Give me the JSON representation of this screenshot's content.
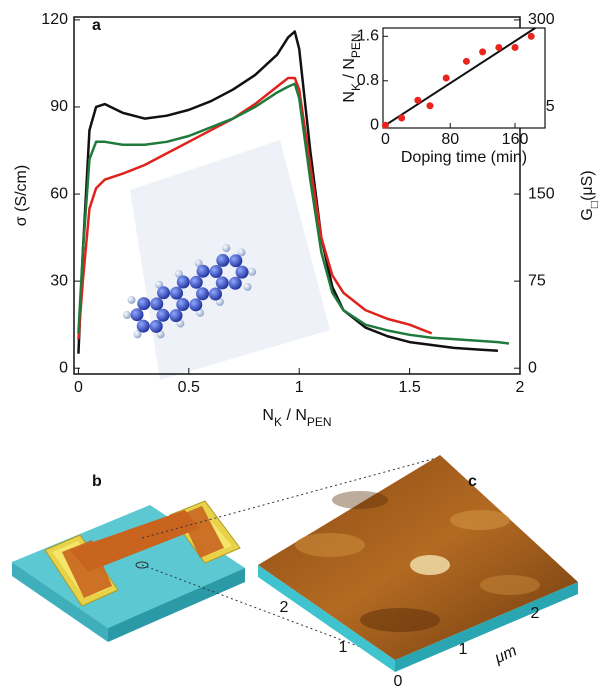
{
  "chart_data": [
    {
      "type": "line",
      "panel_label": "a",
      "x_label": [
        "N",
        "K",
        " / N",
        "PEN"
      ],
      "y_label": "σ (S/cm)",
      "y2_label": [
        "G",
        "□",
        "(μS)"
      ],
      "x": [
        0,
        0.02,
        0.05,
        0.08,
        0.12,
        0.2,
        0.3,
        0.4,
        0.5,
        0.6,
        0.7,
        0.8,
        0.9,
        0.95,
        0.98,
        1.0,
        1.05,
        1.1,
        1.15,
        1.2,
        1.3,
        1.4,
        1.5,
        1.6,
        1.7,
        1.8,
        1.9,
        1.95
      ],
      "series": [
        {
          "color": "#111111",
          "values": [
            5,
            40,
            82,
            90,
            91,
            88,
            86,
            87,
            89,
            92,
            96,
            101,
            108,
            114,
            116,
            110,
            75,
            45,
            28,
            20,
            14,
            11,
            9,
            8,
            7,
            6.5,
            6,
            null
          ]
        },
        {
          "color": "#e0221c",
          "values": [
            10,
            30,
            55,
            62,
            65,
            67,
            70,
            74,
            78,
            82,
            86,
            91,
            97,
            100,
            100,
            96,
            70,
            45,
            32,
            26,
            20,
            17,
            15,
            12,
            null,
            null,
            null,
            null
          ]
        },
        {
          "color": "#1f7a3c",
          "values": [
            12,
            40,
            72,
            78,
            78,
            77,
            77,
            78,
            80,
            83,
            86,
            90,
            95,
            97,
            98,
            93,
            65,
            40,
            26,
            20,
            15,
            13,
            11.5,
            10.5,
            10,
            9.5,
            9,
            8.5
          ]
        }
      ],
      "xlim": [
        -0.02,
        2
      ],
      "xticks": [
        0,
        0.5,
        1,
        1.5,
        2
      ],
      "ylim": [
        -2,
        121
      ],
      "yticks": [
        0,
        30,
        60,
        90,
        120
      ],
      "y2lim": [
        -5,
        302.5
      ],
      "y2ticks": [
        0,
        75,
        150,
        225,
        300
      ]
    },
    {
      "type": "scatter",
      "x_label": "Doping time (min)",
      "y_label": [
        "N",
        "K",
        " / N",
        "PEN"
      ],
      "x": [
        0,
        20,
        40,
        55,
        75,
        100,
        120,
        140,
        160,
        180
      ],
      "values": [
        0,
        0.13,
        0.45,
        0.35,
        0.85,
        1.15,
        1.32,
        1.4,
        1.4,
        1.6
      ],
      "color": "#e8241c",
      "fit": {
        "x": [
          0,
          185
        ],
        "values": [
          0,
          1.75
        ],
        "color": "#111111"
      },
      "xlim": [
        -3,
        197
      ],
      "xticks": [
        0,
        80,
        160
      ],
      "ylim": [
        -0.05,
        1.75
      ],
      "yticks": [
        0,
        0.8,
        1.6
      ]
    }
  ],
  "figure_b": {
    "label": "b"
  },
  "figure_c": {
    "label": "c",
    "left_axis": [
      "0",
      "1",
      "2"
    ],
    "right_axis": [
      "1",
      "2"
    ],
    "unit": "μm"
  }
}
